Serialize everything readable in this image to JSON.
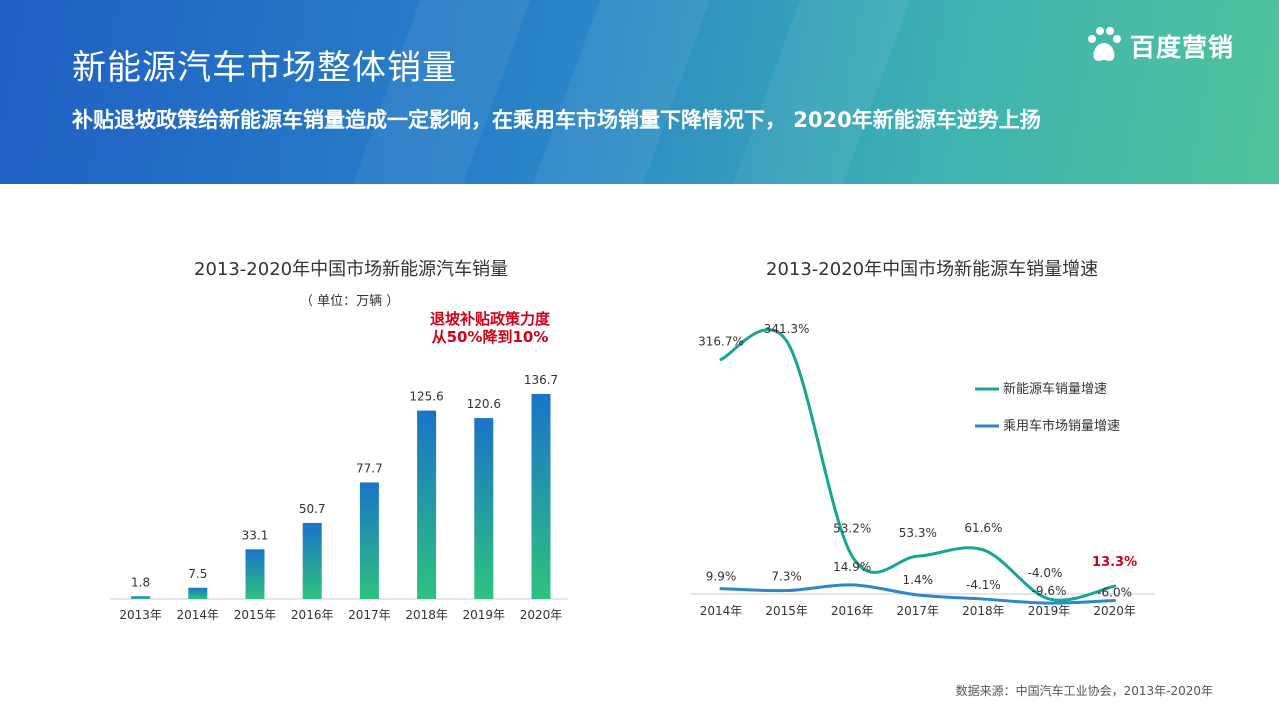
{
  "header": {
    "title": "新能源汽车市场整体销量",
    "subtitle": "补贴退坡政策给新能源车销量造成一定影响，在乘用车市场销量下降情况下， 2020年新能源车逆势上扬",
    "logo_text": "百度营销"
  },
  "left_chart": {
    "title": "2013-2020年中国市场新能源汽车销量",
    "unit": "（ 单位：万辆 ）",
    "annotation_line1": "退坡补贴政策力度",
    "annotation_line2": "从50%降到10%"
  },
  "right_chart": {
    "title": "2013-2020年中国市场新能源车销量增速"
  },
  "source": "数据来源：中国汽车工业协会，2013年-2020年",
  "colors": {
    "bar_top": "#1a73c8",
    "bar_bottom": "#2ec27e",
    "nev_line": "#16a596",
    "pv_line": "#2f86c8",
    "highlight": "#d0021b"
  },
  "chart_data": [
    {
      "type": "bar",
      "categories": [
        "2013年",
        "2014年",
        "2015年",
        "2016年",
        "2017年",
        "2018年",
        "2019年",
        "2020年"
      ],
      "values": [
        1.8,
        7.5,
        33.1,
        50.7,
        77.7,
        125.6,
        120.6,
        136.7
      ],
      "value_labels": [
        "1.8",
        "7.5",
        "33.1",
        "50.7",
        "77.7",
        "125.6",
        "120.6",
        "136.7"
      ],
      "ylim": [
        0,
        160
      ]
    },
    {
      "type": "line",
      "categories": [
        "2014年",
        "2015年",
        "2016年",
        "2017年",
        "2018年",
        "2019年",
        "2020年"
      ],
      "series": [
        {
          "name": "新能源车销量增速",
          "values": [
            316.7,
            341.3,
            53.2,
            53.3,
            61.6,
            -4.0,
            13.3
          ],
          "labels": [
            "316.7%",
            "341.3%",
            "53.2%",
            "53.3%",
            "61.6%",
            "-4.0%",
            "13.3%"
          ]
        },
        {
          "name": "乘用车市场销量增速",
          "values": [
            9.9,
            7.3,
            14.9,
            1.4,
            -4.1,
            -9.6,
            -6.0
          ],
          "labels": [
            "9.9%",
            "7.3%",
            "14.9%",
            "1.4%",
            "-4.1%",
            "-9.6%",
            "-6.0%"
          ]
        }
      ],
      "ylim": [
        -20,
        360
      ],
      "legend": "right"
    }
  ]
}
